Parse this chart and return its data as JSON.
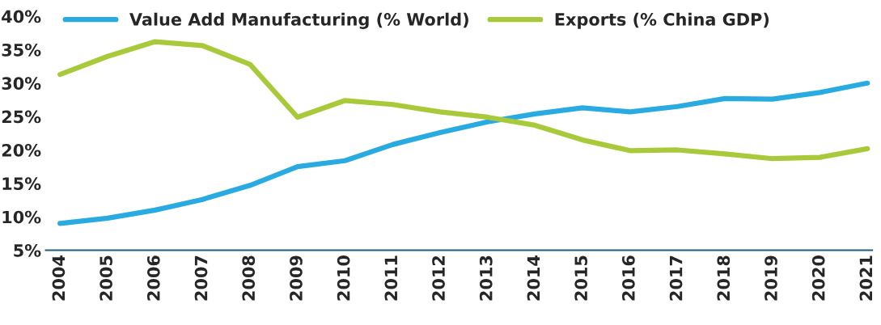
{
  "chart_data": {
    "type": "line",
    "categories": [
      "2004",
      "2005",
      "2006",
      "2007",
      "2008",
      "2009",
      "2010",
      "2011",
      "2012",
      "2013",
      "2014",
      "2015",
      "2016",
      "2017",
      "2018",
      "2019",
      "2020",
      "2021"
    ],
    "series": [
      {
        "name": "Value Add Manufacturing (% World)",
        "color": "#29abe2",
        "values": [
          9.0,
          9.8,
          11.0,
          12.6,
          14.7,
          17.5,
          18.4,
          20.8,
          22.6,
          24.2,
          25.4,
          26.3,
          25.7,
          26.5,
          27.7,
          27.6,
          28.6,
          30.0
        ]
      },
      {
        "name": "Exports (% China GDP)",
        "color": "#a8c93a",
        "values": [
          31.3,
          34.0,
          36.2,
          35.6,
          32.8,
          24.9,
          27.4,
          26.8,
          25.7,
          24.9,
          23.7,
          21.5,
          19.9,
          20.0,
          19.4,
          18.7,
          18.9,
          20.2
        ]
      }
    ],
    "ylim": [
      5,
      40
    ],
    "yticks": [
      {
        "value": 5,
        "label": "5%"
      },
      {
        "value": 10,
        "label": "10%"
      },
      {
        "value": 15,
        "label": "15%"
      },
      {
        "value": 20,
        "label": "20%"
      },
      {
        "value": 25,
        "label": "25%"
      },
      {
        "value": 30,
        "label": "30%"
      },
      {
        "value": 35,
        "label": "35%"
      },
      {
        "value": 40,
        "label": "40%"
      }
    ],
    "grid": false,
    "legend": "top",
    "marker": "none",
    "line_style": "solid"
  }
}
